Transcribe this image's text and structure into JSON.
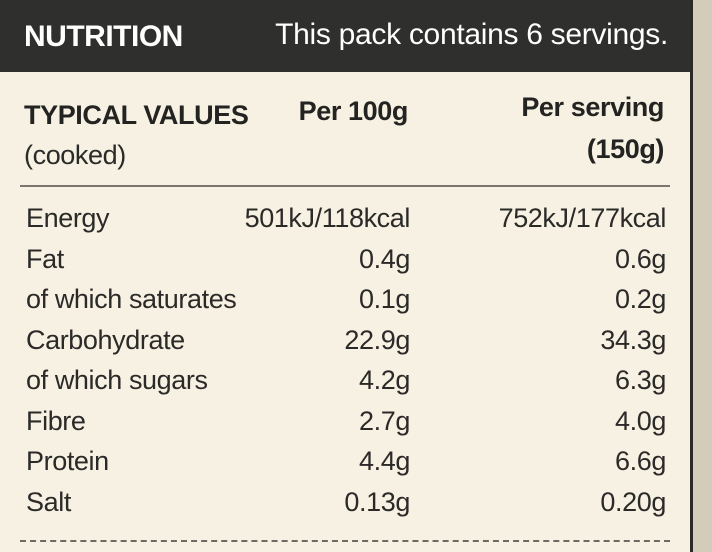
{
  "header": {
    "title": "NUTRITION",
    "note": "This pack contains 6 servings."
  },
  "columns": {
    "typical_values": "TYPICAL VALUES",
    "typical_values_sub": "(cooked)",
    "per_100g": "Per 100g",
    "per_serving": "Per serving",
    "per_serving_sub": "(150g)"
  },
  "rows": [
    {
      "name": "Energy",
      "per_100g": "501kJ/118kcal",
      "per_serving": "752kJ/177kcal"
    },
    {
      "name": "Fat",
      "per_100g": "0.4g",
      "per_serving": "0.6g"
    },
    {
      "name": "of which saturates",
      "per_100g": "0.1g",
      "per_serving": "0.2g"
    },
    {
      "name": "Carbohydrate",
      "per_100g": "22.9g",
      "per_serving": "34.3g"
    },
    {
      "name": "of which sugars",
      "per_100g": "4.2g",
      "per_serving": "6.3g"
    },
    {
      "name": "Fibre",
      "per_100g": "2.7g",
      "per_serving": "4.0g"
    },
    {
      "name": "Protein",
      "per_100g": "4.4g",
      "per_serving": "6.6g"
    },
    {
      "name": "Salt",
      "per_100g": "0.13g",
      "per_serving": "0.20g"
    }
  ]
}
